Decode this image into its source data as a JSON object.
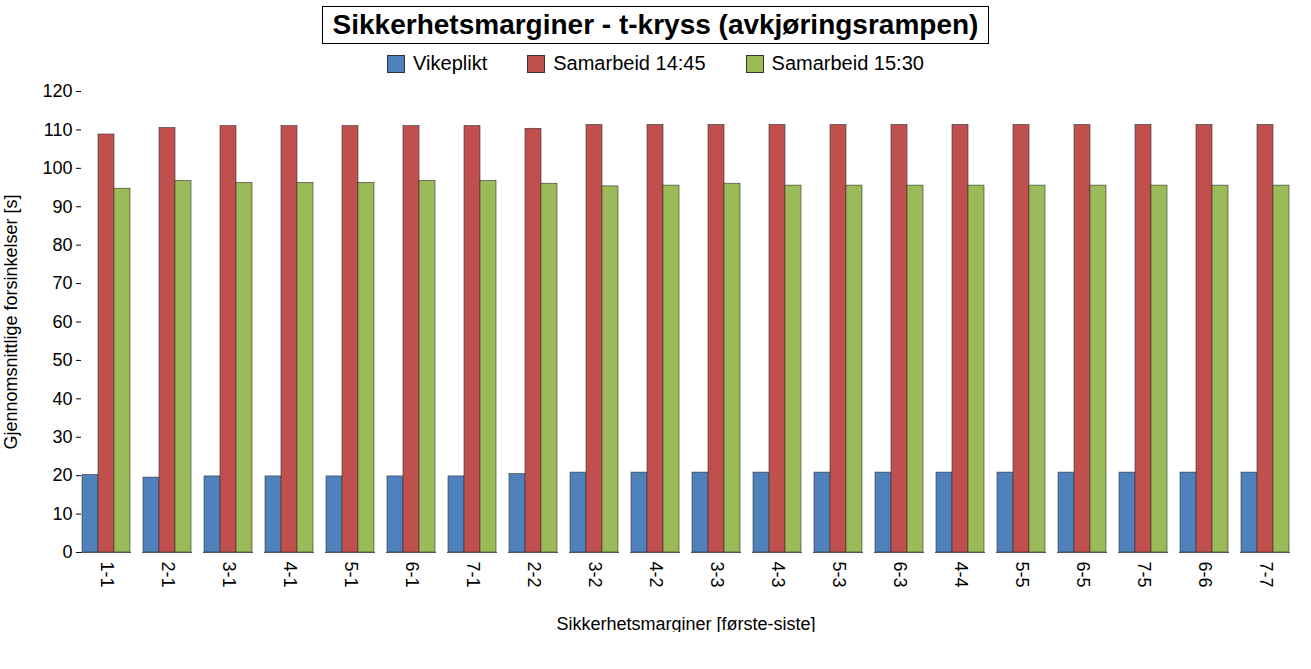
{
  "chart_data": {
    "type": "bar",
    "title": "Sikkerhetsmarginer - t-kryss (avkjøringsrampen)",
    "x_label": "Sikkerhetsmarginer [første-siste]",
    "y_label": "Gjennomsnittlige forsinkelser [s]",
    "categories": [
      "1-1",
      "2-1",
      "3-1",
      "4-1",
      "5-1",
      "6-1",
      "7-1",
      "2-2",
      "3-2",
      "4-2",
      "3-3",
      "4-3",
      "5-3",
      "6-3",
      "4-4",
      "5-5",
      "6-5",
      "7-5",
      "6-6",
      "7-7"
    ],
    "series": [
      {
        "name": "Vikeplikt",
        "color": "#4f81bd",
        "values": [
          20.2,
          19.5,
          19.8,
          19.8,
          19.8,
          19.8,
          19.8,
          20.4,
          20.8,
          20.8,
          20.8,
          20.8,
          20.8,
          20.8,
          20.8,
          20.8,
          20.8,
          20.8,
          20.8,
          20.8
        ]
      },
      {
        "name": "Samarbeid 14:45",
        "color": "#c0504d",
        "values": [
          108.8,
          110.5,
          111,
          111,
          111,
          111,
          111,
          110.3,
          111.3,
          111.3,
          111.3,
          111.3,
          111.3,
          111.3,
          111.3,
          111.3,
          111.3,
          111.3,
          111.3,
          111.3
        ]
      },
      {
        "name": "Samarbeid 15:30",
        "color": "#9bbb59",
        "values": [
          94.7,
          96.7,
          96.2,
          96.2,
          96.2,
          96.7,
          96.7,
          96,
          95.3,
          95.5,
          96,
          95.5,
          95.5,
          95.5,
          95.5,
          95.5,
          95.5,
          95.5,
          95.5,
          95.5
        ]
      }
    ],
    "ylim": [
      0,
      120
    ],
    "yticks": [
      0,
      10,
      20,
      30,
      40,
      50,
      60,
      70,
      80,
      90,
      100,
      110,
      120
    ],
    "grid": false,
    "legend": "top"
  }
}
